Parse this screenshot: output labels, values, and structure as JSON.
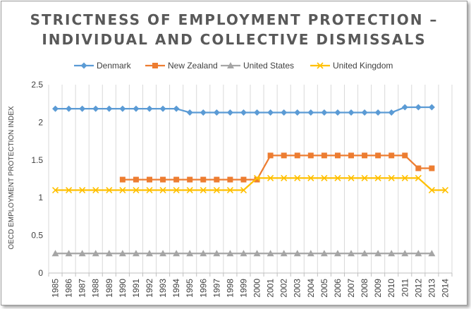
{
  "chart_data": {
    "type": "line",
    "title_lines": [
      "STRICTNESS OF EMPLOYMENT PROTECTION –",
      "INDIVIDUAL AND COLLECTIVE DISMISSALS"
    ],
    "xlabel": "",
    "ylabel": "OECD EMPLOYMENT PROTECTION INDEX",
    "categories": [
      "1985",
      "1986",
      "1987",
      "1988",
      "1989",
      "1990",
      "1991",
      "1992",
      "1993",
      "1994",
      "1995",
      "1996",
      "1997",
      "1998",
      "1999",
      "2000",
      "2001",
      "2002",
      "2003",
      "2004",
      "2005",
      "2006",
      "2007",
      "2008",
      "2009",
      "2010",
      "2011",
      "2012",
      "2013",
      "2014"
    ],
    "ylim": [
      0,
      2.5
    ],
    "yticks": [
      "0",
      "0.5",
      "1",
      "1.5",
      "2",
      "2.5"
    ],
    "grid": "vertical",
    "legend_position": "top",
    "series": [
      {
        "name": "Denmark",
        "color": "#5B9BD5",
        "marker": "diamond",
        "values": [
          2.18,
          2.18,
          2.18,
          2.18,
          2.18,
          2.18,
          2.18,
          2.18,
          2.18,
          2.18,
          2.13,
          2.13,
          2.13,
          2.13,
          2.13,
          2.13,
          2.13,
          2.13,
          2.13,
          2.13,
          2.13,
          2.13,
          2.13,
          2.13,
          2.13,
          2.13,
          2.2,
          2.2,
          2.2,
          null
        ]
      },
      {
        "name": "New Zealand",
        "color": "#ED7D31",
        "marker": "square",
        "values": [
          null,
          null,
          null,
          null,
          null,
          1.24,
          1.24,
          1.24,
          1.24,
          1.24,
          1.24,
          1.24,
          1.24,
          1.24,
          1.24,
          1.24,
          1.56,
          1.56,
          1.56,
          1.56,
          1.56,
          1.56,
          1.56,
          1.56,
          1.56,
          1.56,
          1.56,
          1.39,
          1.39,
          null
        ]
      },
      {
        "name": "United States",
        "color": "#A5A5A5",
        "marker": "triangle",
        "values": [
          0.26,
          0.26,
          0.26,
          0.26,
          0.26,
          0.26,
          0.26,
          0.26,
          0.26,
          0.26,
          0.26,
          0.26,
          0.26,
          0.26,
          0.26,
          0.26,
          0.26,
          0.26,
          0.26,
          0.26,
          0.26,
          0.26,
          0.26,
          0.26,
          0.26,
          0.26,
          0.26,
          0.26,
          0.26,
          null
        ]
      },
      {
        "name": "United Kingdom",
        "color": "#FFC000",
        "marker": "x",
        "values": [
          1.1,
          1.1,
          1.1,
          1.1,
          1.1,
          1.1,
          1.1,
          1.1,
          1.1,
          1.1,
          1.1,
          1.1,
          1.1,
          1.1,
          1.1,
          1.26,
          1.26,
          1.26,
          1.26,
          1.26,
          1.26,
          1.26,
          1.26,
          1.26,
          1.26,
          1.26,
          1.26,
          1.26,
          1.1,
          1.1
        ]
      }
    ]
  }
}
